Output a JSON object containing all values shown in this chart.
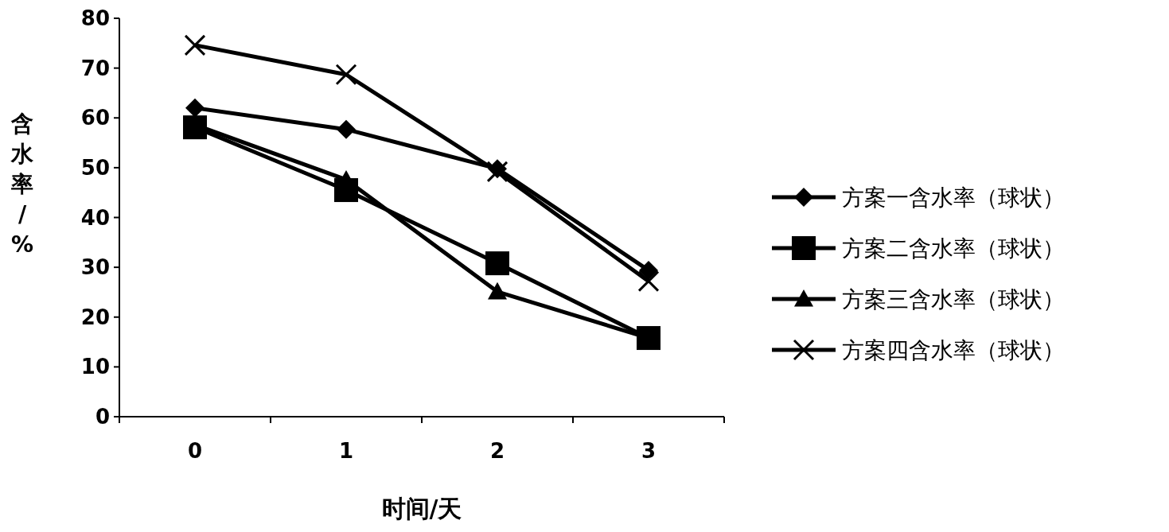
{
  "chart_data": {
    "type": "line",
    "xlabel": "时间/天",
    "ylabel": "含水率/%",
    "categories": [
      "0",
      "1",
      "2",
      "3"
    ],
    "ylim": [
      0,
      80
    ],
    "yticks": [
      0,
      10,
      20,
      30,
      40,
      50,
      60,
      70,
      80
    ],
    "grid": false,
    "legend": "right",
    "series": [
      {
        "name": "方案一含水率（球状）",
        "color": "#000000",
        "marker": "diamond",
        "values": [
          62,
          57.7,
          49.8,
          29.4
        ]
      },
      {
        "name": "方案二含水率（球状）",
        "color": "#000000",
        "marker": "square",
        "values": [
          58.1,
          45.5,
          30.8,
          15.8
        ]
      },
      {
        "name": "方案三含水率（球状）",
        "color": "#000000",
        "marker": "triangle",
        "values": [
          58.6,
          47.6,
          25.1,
          15.8
        ]
      },
      {
        "name": "方案四含水率（球状）",
        "color": "#000000",
        "marker": "cross",
        "values": [
          74.6,
          68.7,
          49.2,
          27.2
        ]
      }
    ]
  }
}
